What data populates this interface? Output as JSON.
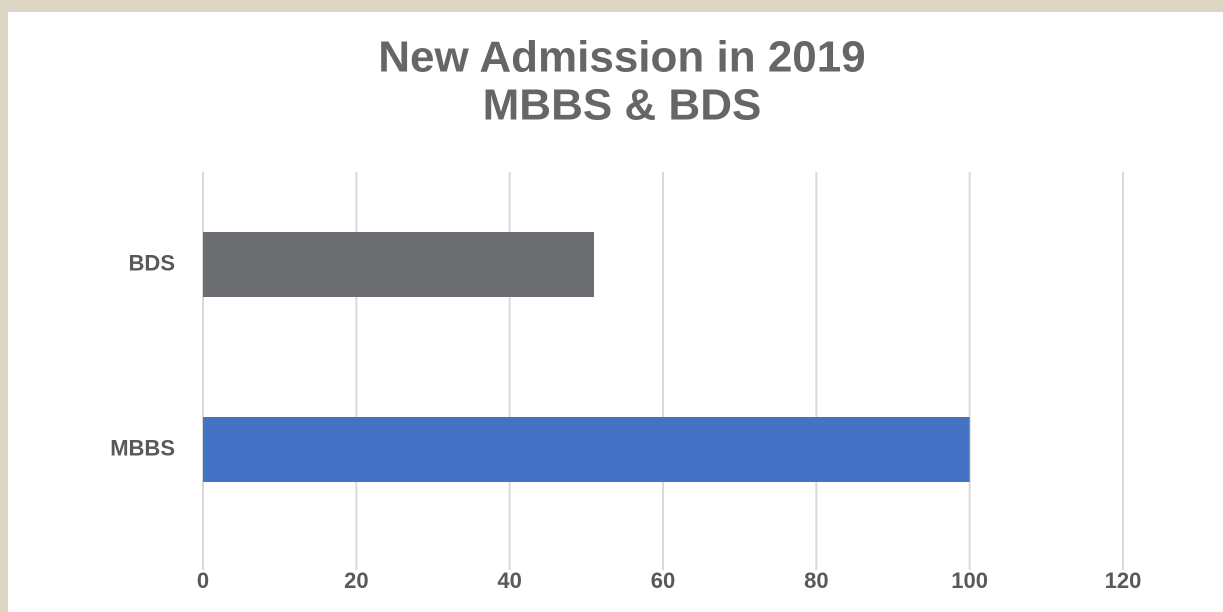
{
  "chart_data": {
    "type": "hbar",
    "title": [
      "New Admission in 2019",
      "MBBS & BDS"
    ],
    "categories": [
      "BDS",
      "MBBS"
    ],
    "values": [
      51,
      100
    ],
    "colors": [
      "#6d6e71",
      "#4472c4"
    ],
    "xlim": [
      0,
      120
    ],
    "xticks": [
      0,
      20,
      40,
      60,
      80,
      100,
      120
    ],
    "grid": true
  }
}
